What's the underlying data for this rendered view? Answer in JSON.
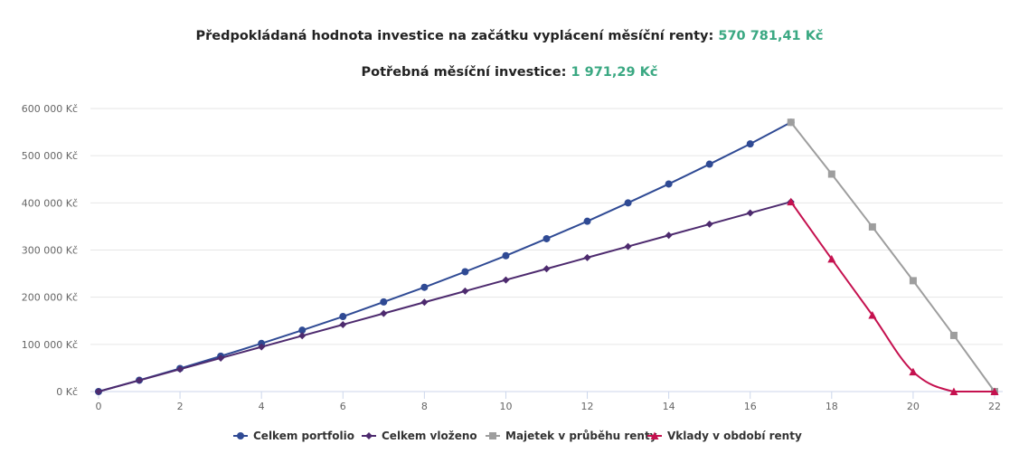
{
  "header": {
    "line1_label": "Předpokládaná hodnota investice na začátku vyplácení měsíční renty:",
    "line1_value": "570 781,41 Kč",
    "line2_label": "Potřebná měsíční investice:",
    "line2_value": "1 971,29 Kč"
  },
  "chart_data": {
    "type": "line",
    "title": "",
    "xlabel": "",
    "ylabel": "",
    "xlim": [
      0,
      22
    ],
    "ylim": [
      0,
      600000
    ],
    "x_ticks": [
      "0",
      "2",
      "4",
      "6",
      "8",
      "10",
      "12",
      "14",
      "16",
      "18",
      "20",
      "22"
    ],
    "y_ticks": [
      "0 Kč",
      "100 000 Kč",
      "200 000 Kč",
      "300 000 Kč",
      "400 000 Kč",
      "500 000 Kč",
      "600 000 Kč"
    ],
    "grid": true,
    "legend_position": "bottom-center",
    "series": [
      {
        "name": "Celkem portfolio",
        "color": "#2f4a94",
        "marker": "circle",
        "x": [
          0,
          1,
          2,
          3,
          4,
          5,
          6,
          7,
          8,
          9,
          10,
          11,
          12,
          13,
          14,
          15,
          16,
          17
        ],
        "y": [
          0,
          24000,
          49000,
          75000,
          102000,
          130000,
          159000,
          190000,
          221000,
          254000,
          288000,
          324000,
          361000,
          400000,
          440000,
          482000,
          525000,
          570781
        ]
      },
      {
        "name": "Celkem vloženo",
        "color": "#4d2a6e",
        "marker": "diamond",
        "x": [
          0,
          1,
          2,
          3,
          4,
          5,
          6,
          7,
          8,
          9,
          10,
          11,
          12,
          13,
          14,
          15,
          16,
          17
        ],
        "y": [
          0,
          23700,
          47300,
          71000,
          94600,
          118300,
          141900,
          165600,
          189300,
          212900,
          236600,
          260200,
          283900,
          307500,
          331200,
          354800,
          378500,
          402200
        ]
      },
      {
        "name": "Majetek v průběhu renty",
        "color": "#9e9e9e",
        "marker": "square",
        "x": [
          17,
          18,
          19,
          20,
          21,
          22
        ],
        "y": [
          570781,
          461000,
          349000,
          235000,
          119000,
          0
        ]
      },
      {
        "name": "Vklady v období renty",
        "color": "#c5114f",
        "marker": "triangle",
        "smooth": true,
        "x": [
          17,
          18,
          19,
          20,
          21,
          22
        ],
        "y": [
          402200,
          281000,
          162000,
          42000,
          0,
          0
        ]
      }
    ]
  }
}
